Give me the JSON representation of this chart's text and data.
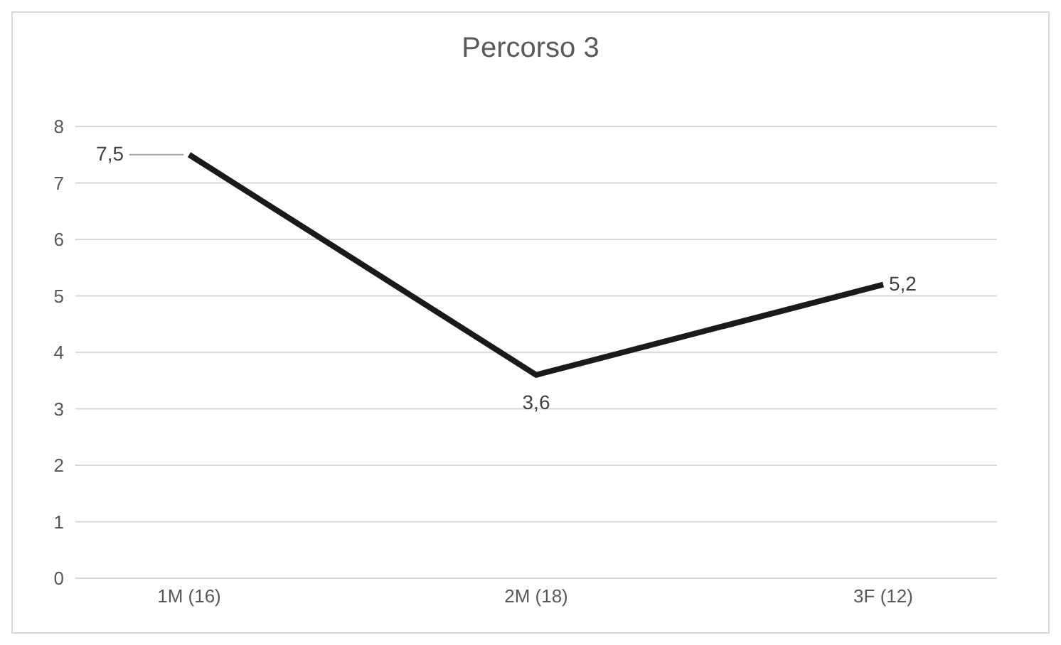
{
  "chart_data": {
    "type": "line",
    "title": "Percorso 3",
    "categories": [
      "1M (16)",
      "2M (18)",
      "3F (12)"
    ],
    "series": [
      {
        "color": "#1a1a1a",
        "values": [
          7.5,
          3.6,
          5.2
        ],
        "value_labels": [
          "7,5",
          "3,6",
          "5,2"
        ]
      }
    ],
    "ylim": [
      0,
      8
    ],
    "yticks": [
      0,
      1,
      2,
      3,
      4,
      5,
      6,
      7,
      8
    ],
    "grid": "y",
    "marker": "none",
    "line_style": "solid"
  }
}
